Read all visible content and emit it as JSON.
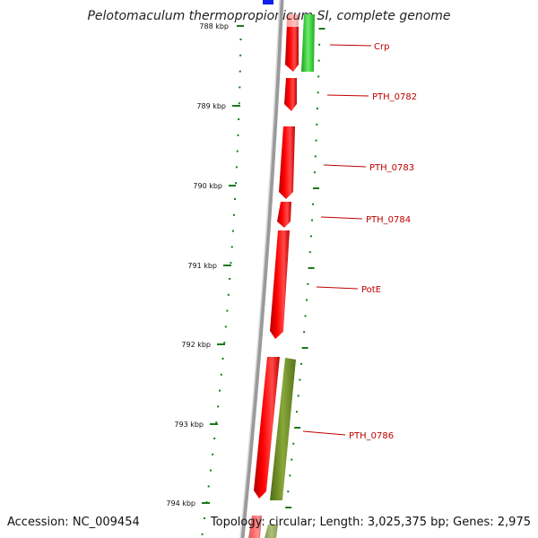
{
  "title": "Pelotomaculum thermopropionicum SI, complete genome",
  "accession": "Accession: NC_009454",
  "summary": "Topology: circular; Length: 3,025,375 bp; Genes: 2,975",
  "axis_labels": [
    "788 kbp",
    "789 kbp",
    "790 kbp",
    "791 kbp",
    "792 kbp",
    "793 kbp",
    "794 kbp"
  ],
  "gene_labels": [
    "Crp",
    "PTH_0782",
    "PTH_0783",
    "PTH_0784",
    "PotE",
    "PTH_0786"
  ],
  "colors": {
    "forward_gene": "#ff0000",
    "reverse_gene": "#33cc33",
    "other_gene": "#6b8e23",
    "tick": "#1a7a1a",
    "backbone": "#888888",
    "label_line": "#c00000"
  }
}
